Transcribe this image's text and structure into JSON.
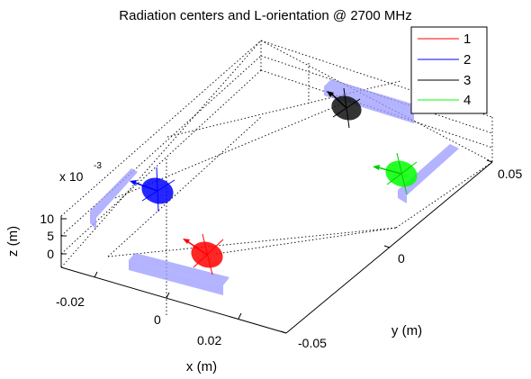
{
  "chart_data": {
    "type": "scatter",
    "title": "Radiation centers and L-orientation @ 2700 MHz",
    "xlabel": "x (m)",
    "ylabel": "y (m)",
    "zlabel": "z (m)",
    "x_ticks": [
      "-0.02",
      "0",
      "0.02"
    ],
    "y_ticks": [
      "-0.05",
      "0",
      "0.05"
    ],
    "z_ticks": [
      "0",
      "5",
      "10"
    ],
    "z_exponent_base": "x 10",
    "z_exponent_power": "-3",
    "xlim": [
      -0.03,
      0.03
    ],
    "ylim": [
      -0.06,
      0.06
    ],
    "zlim": [
      -0.003,
      0.012
    ],
    "grid": true,
    "legend_position": "top-right",
    "series": [
      {
        "name": "1",
        "color": "#ff0000",
        "point": [
          0.01,
          -0.02,
          0.0
        ]
      },
      {
        "name": "2",
        "color": "#0000ff",
        "point": [
          -0.02,
          -0.02,
          0.0
        ]
      },
      {
        "name": "3",
        "color": "#000000",
        "point": [
          -0.02,
          0.04,
          0.0
        ]
      },
      {
        "name": "4",
        "color": "#00ff00",
        "point": [
          0.01,
          0.04,
          0.0
        ]
      }
    ],
    "element_color": "#9999ff"
  }
}
